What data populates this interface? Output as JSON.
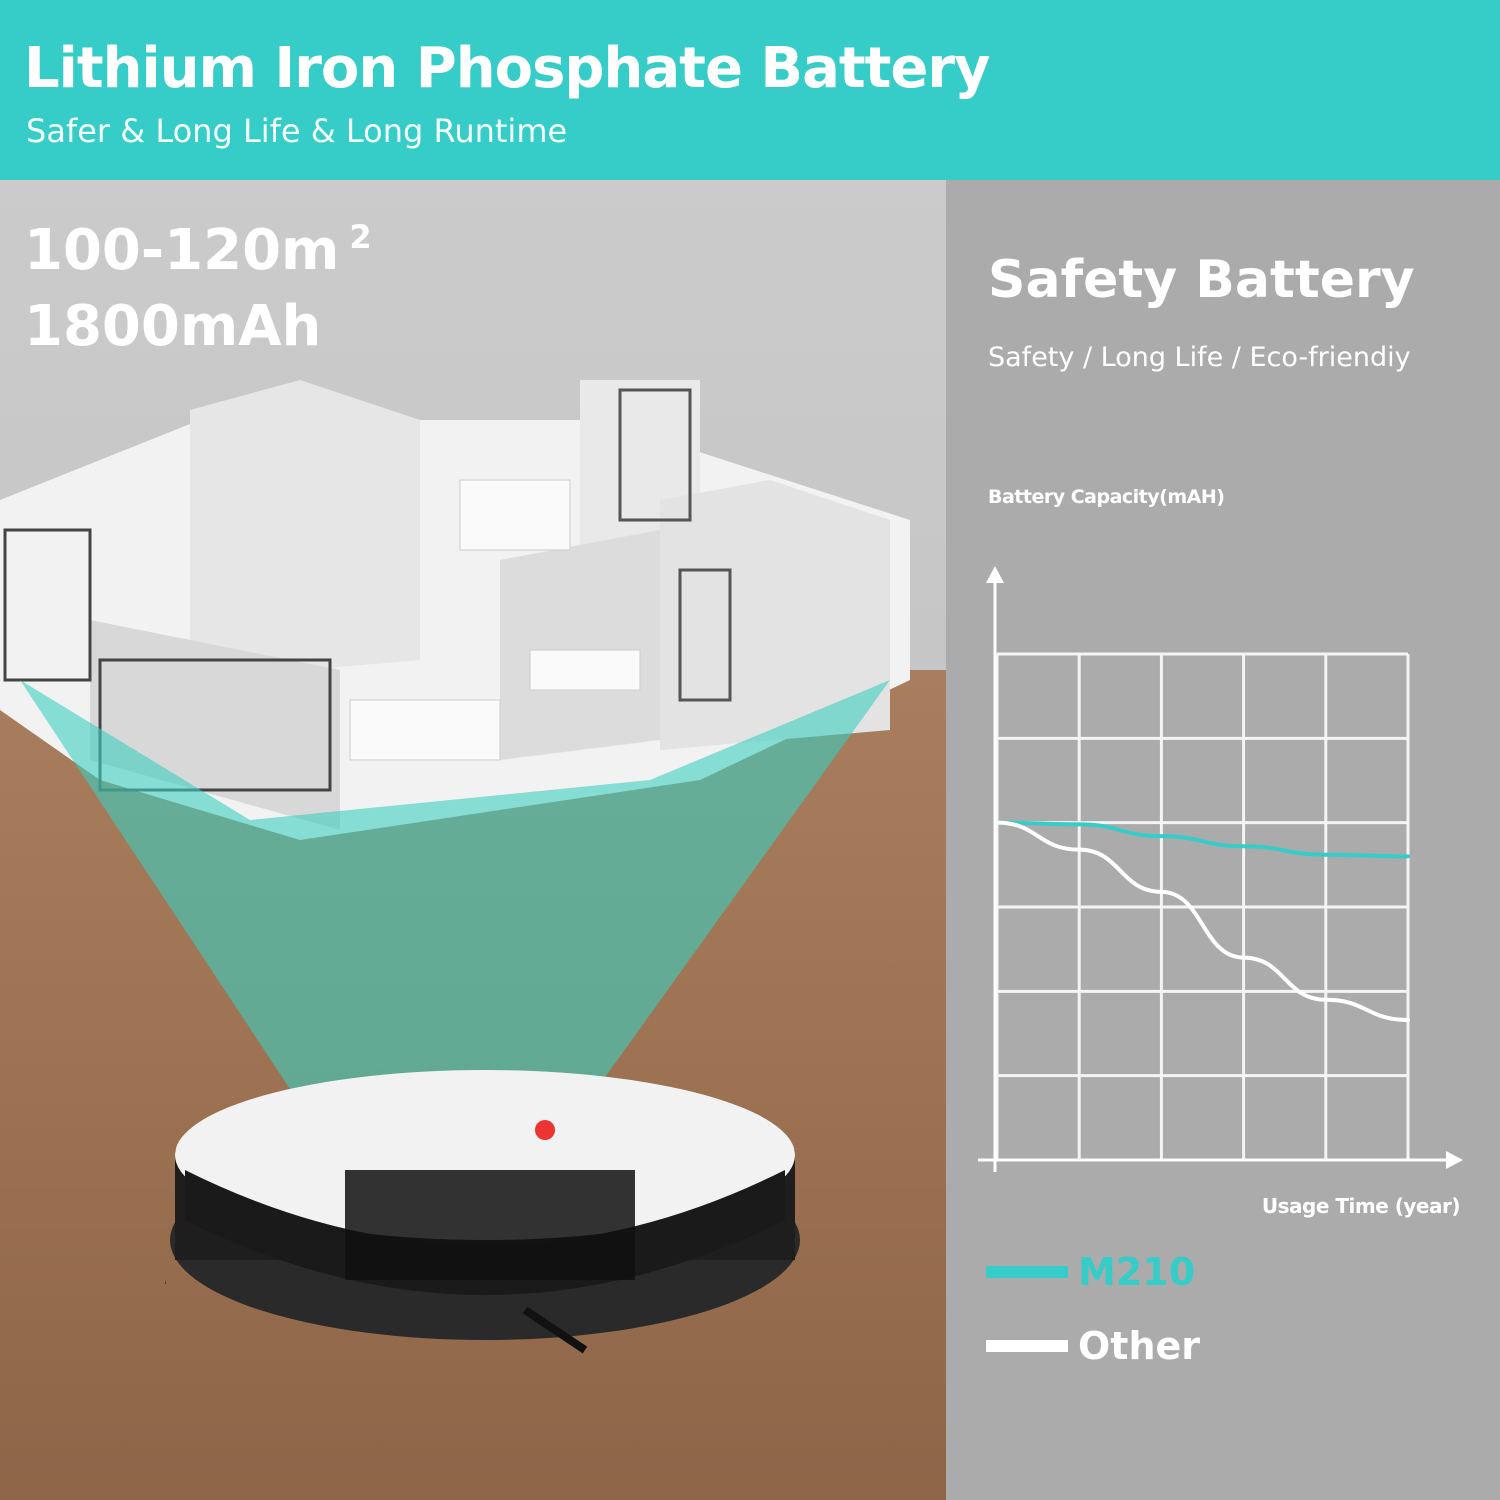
{
  "header": {
    "title": "Lithium Iron Phosphate Battery",
    "subtitle": "Safer & Long Life & Long Runtime"
  },
  "specs": {
    "area": "100-120m",
    "area_superscript": "2",
    "capacity": "1800mAh"
  },
  "panel": {
    "title": "Safety Battery",
    "subtitle": "Safety / Long Life / Eco-friendiy"
  },
  "colors": {
    "accent": "#36ccc8",
    "panel_bg": "#ababab",
    "other_line": "#ffffff"
  },
  "chart_data": {
    "type": "line",
    "ylabel": "Battery Capacity(mAH)",
    "xlabel": "Usage Time (year)",
    "grid": true,
    "legend_placement": "bottom-left",
    "x": [
      0,
      1,
      2,
      3,
      4,
      5
    ],
    "xlim": [
      0,
      5
    ],
    "ylim": [
      0,
      6
    ],
    "series": [
      {
        "name": "M210",
        "color": "#36ccc8",
        "values": [
          4.0,
          3.98,
          3.84,
          3.72,
          3.62,
          3.6
        ]
      },
      {
        "name": "Other",
        "color": "#ffffff",
        "values": [
          4.0,
          3.68,
          3.18,
          2.4,
          1.9,
          1.66
        ]
      }
    ]
  }
}
